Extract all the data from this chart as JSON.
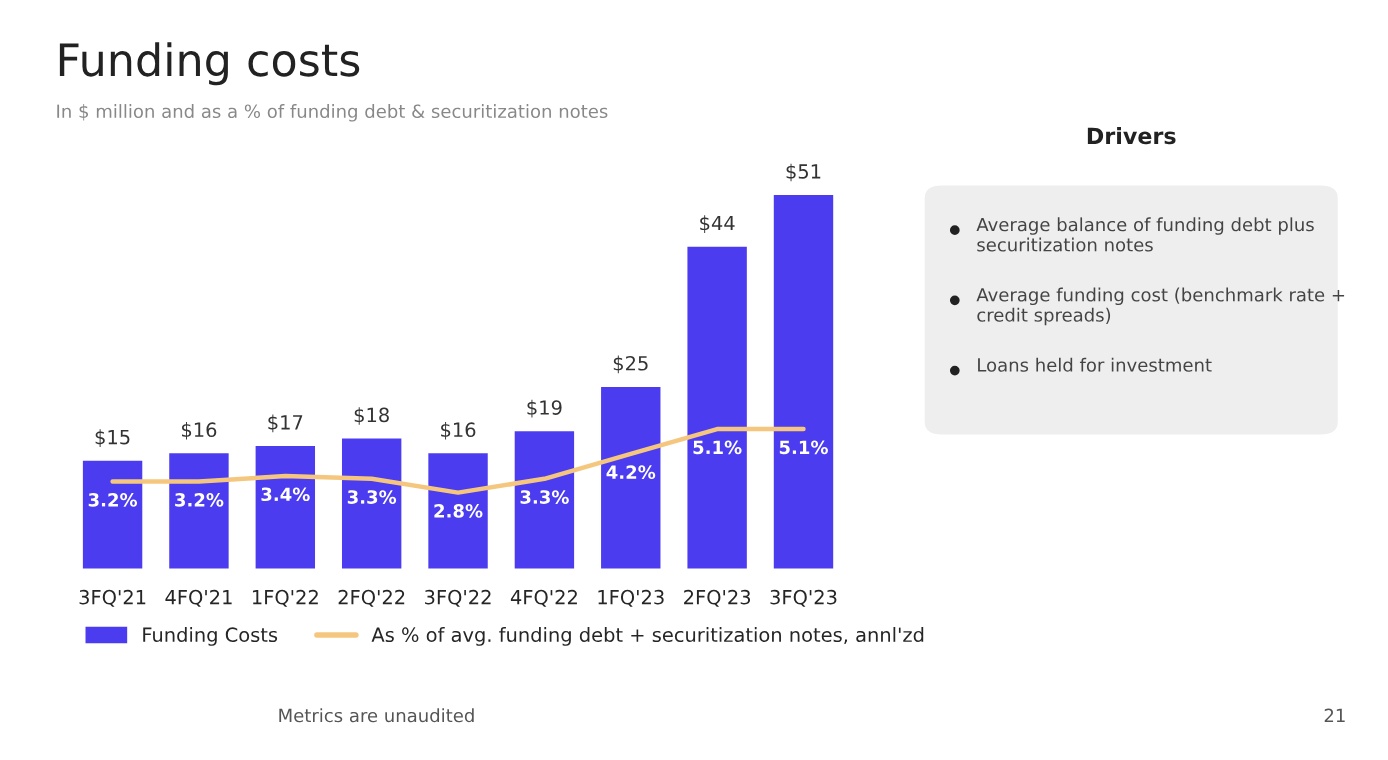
{
  "chart_data": [
    {
      "type": "bar",
      "title": "Funding costs",
      "subtitle": "In $ million and as a % of funding debt & securitization notes",
      "categories": [
        "3FQ'21",
        "4FQ'21",
        "1FQ'22",
        "2FQ'22",
        "3FQ'22",
        "4FQ'22",
        "1FQ'23",
        "2FQ'23",
        "3FQ'23"
      ],
      "series": [
        {
          "name": "Funding Costs",
          "type": "bar",
          "color": "#4b3cf0",
          "values": [
            15,
            16,
            17,
            18,
            16,
            19,
            25,
            44,
            51
          ],
          "value_labels": [
            "$15",
            "$16",
            "$17",
            "$18",
            "$16",
            "$19",
            "$25",
            "$44",
            "$51"
          ]
        },
        {
          "name": "As % of avg. funding debt + securitization notes, annl'zd",
          "type": "line",
          "axis": "y2",
          "color": "#f5c77e",
          "values": [
            3.2,
            3.2,
            3.4,
            3.3,
            2.8,
            3.3,
            4.2,
            5.1,
            5.1
          ],
          "value_labels": [
            "3.2%",
            "3.2%",
            "3.4%",
            "3.3%",
            "2.8%",
            "3.3%",
            "4.2%",
            "5.1%",
            "5.1%"
          ]
        }
      ],
      "tick_labels": "x",
      "legend": "bottom",
      "grid": false,
      "annotations": [
        "Metrics are unaudited",
        "21"
      ]
    },
    {
      "type": "other",
      "title": "Drivers",
      "annotations": [
        "Average balance of funding debt plus securitization notes",
        "Average funding cost (benchmark rate + credit spreads)",
        "Loans held for investment"
      ]
    }
  ]
}
